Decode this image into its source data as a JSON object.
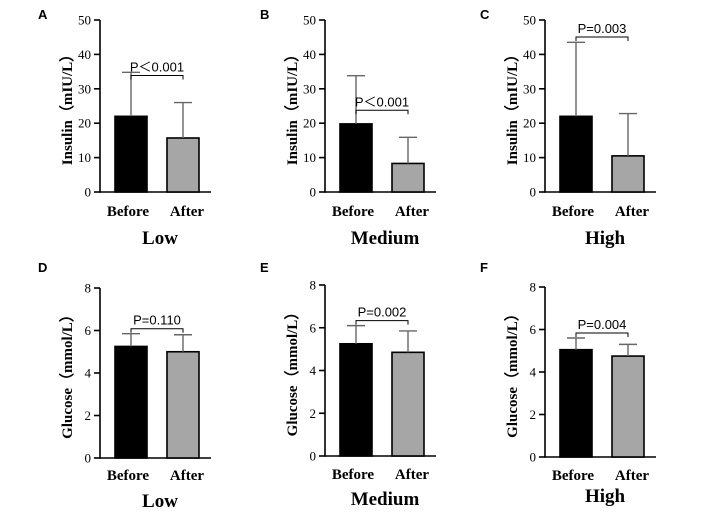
{
  "chart_data": [
    {
      "id": "A",
      "type": "bar",
      "ylabel": "Insulin（mIU/L）",
      "group": "Low",
      "categories": [
        "Before",
        "After"
      ],
      "values": [
        22,
        15.7
      ],
      "errors": [
        12.8,
        10.3
      ],
      "ylim": [
        0,
        50
      ],
      "yticks": [
        0,
        10,
        20,
        30,
        40,
        50
      ],
      "yticklabels": [
        "0",
        "10",
        "20",
        "30",
        "40",
        "50"
      ],
      "pvalue": "P＜0.001",
      "colors": [
        "#000000",
        "#a6a6a6"
      ]
    },
    {
      "id": "B",
      "type": "bar",
      "ylabel": "Insulin（mIU/L）",
      "group": "Medium",
      "categories": [
        "Before",
        "After"
      ],
      "values": [
        19.8,
        8.3
      ],
      "errors": [
        14,
        7.6
      ],
      "ylim": [
        0,
        50
      ],
      "yticks": [
        0,
        10,
        20,
        30,
        40,
        50
      ],
      "yticklabels": [
        "0",
        "10",
        "20",
        "30",
        "40",
        "50"
      ],
      "pvalue": "P＜0.001",
      "colors": [
        "#000000",
        "#a6a6a6"
      ]
    },
    {
      "id": "C",
      "type": "bar",
      "ylabel": "Insulin（mIU/L）",
      "group": "High",
      "categories": [
        "Before",
        "After"
      ],
      "values": [
        22,
        10.5
      ],
      "errors": [
        21.5,
        12.3
      ],
      "ylim": [
        0,
        50
      ],
      "yticks": [
        0,
        10,
        20,
        30,
        40,
        50
      ],
      "yticklabels": [
        "0",
        "10",
        "20",
        "30",
        "40",
        "50"
      ],
      "pvalue": "P=0.003",
      "colors": [
        "#000000",
        "#a6a6a6"
      ]
    },
    {
      "id": "D",
      "type": "bar",
      "ylabel": "Glucose（mmol/L）",
      "group": "Low",
      "categories": [
        "Before",
        "After"
      ],
      "values": [
        5.25,
        5.0
      ],
      "errors": [
        0.6,
        0.8
      ],
      "ylim": [
        0,
        8
      ],
      "yticks": [
        0,
        2,
        4,
        6,
        8
      ],
      "yticklabels": [
        "0",
        "2",
        "4",
        "6",
        "8"
      ],
      "pvalue": "P=0.110",
      "colors": [
        "#000000",
        "#a6a6a6"
      ]
    },
    {
      "id": "E",
      "type": "bar",
      "ylabel": "Glucose（mmol/L）",
      "group": "Medium",
      "categories": [
        "Before",
        "After"
      ],
      "values": [
        5.25,
        4.85
      ],
      "errors": [
        0.85,
        1.0
      ],
      "ylim": [
        0,
        8
      ],
      "yticks": [
        0,
        2,
        4,
        6,
        8
      ],
      "yticklabels": [
        "0",
        "2",
        "4",
        "6",
        "8"
      ],
      "pvalue": "P=0.002",
      "colors": [
        "#000000",
        "#a6a6a6"
      ]
    },
    {
      "id": "F",
      "type": "bar",
      "ylabel": "Glucose（mmol/L）",
      "group": "High",
      "categories": [
        "Before",
        "After"
      ],
      "values": [
        5.05,
        4.75
      ],
      "errors": [
        0.55,
        0.55
      ],
      "ylim": [
        0,
        8
      ],
      "yticks": [
        0,
        2,
        4,
        6,
        8
      ],
      "yticklabels": [
        "0",
        "2",
        "4",
        "6",
        "8"
      ],
      "pvalue": "P=0.004",
      "colors": [
        "#000000",
        "#a6a6a6"
      ]
    }
  ]
}
